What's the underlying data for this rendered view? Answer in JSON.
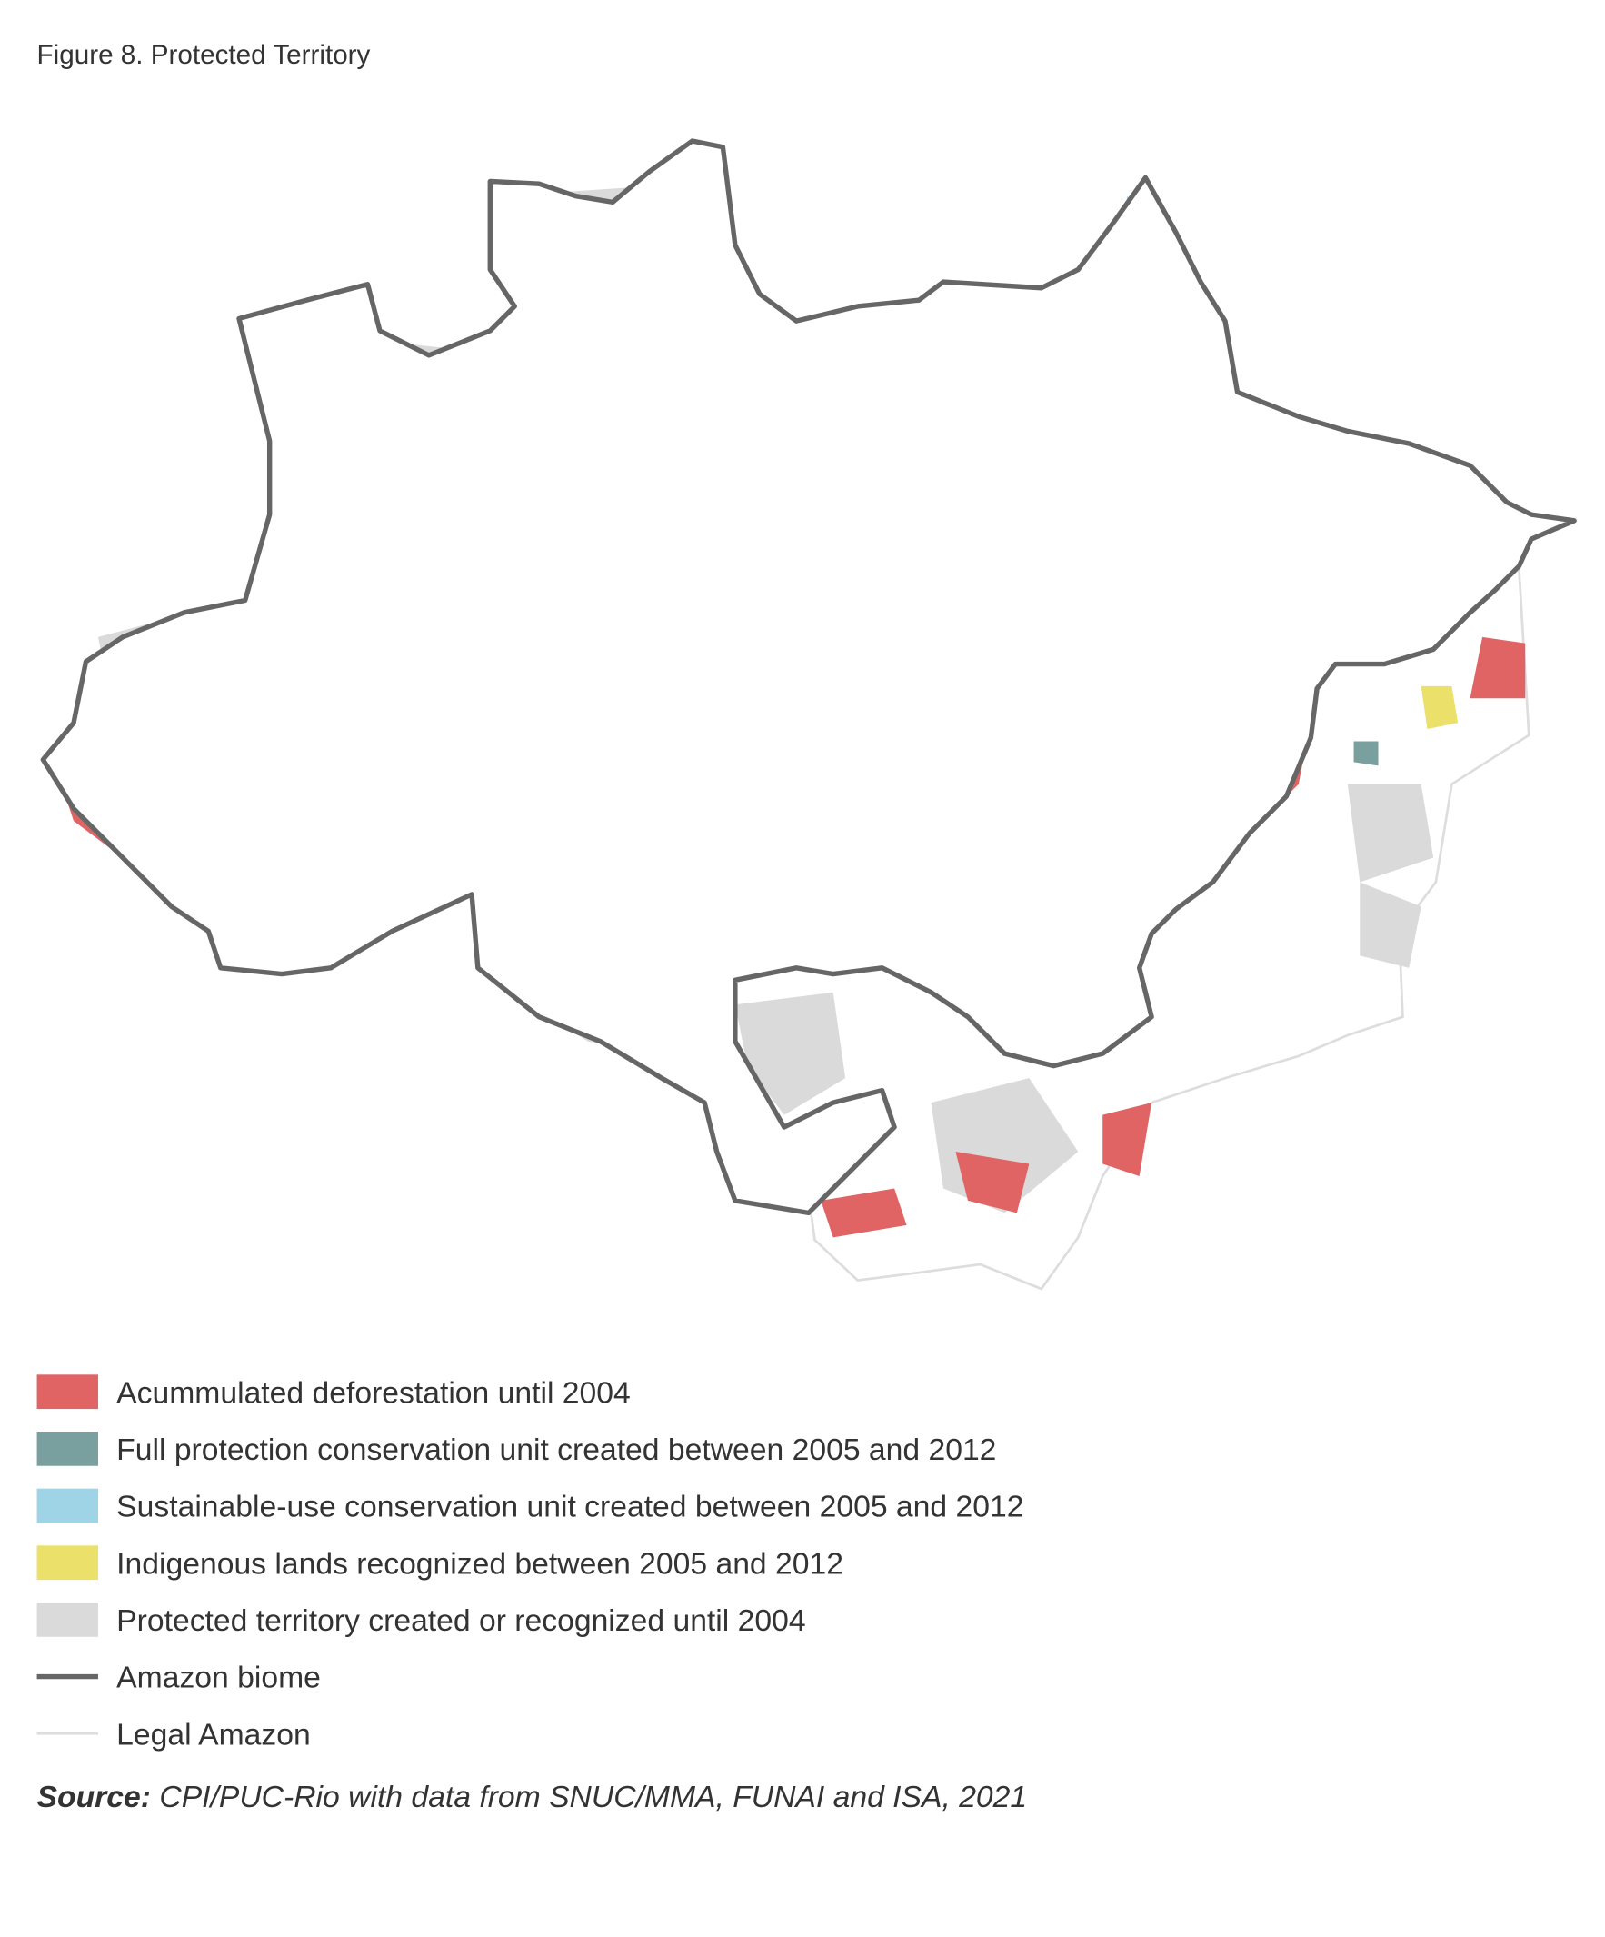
{
  "title": "Figure 8. Protected Territory",
  "legend": [
    {
      "label": "Acummulated deforestation until 2004",
      "color": "#e06464",
      "symbol": "area"
    },
    {
      "label": "Full protection conservation unit created between 2005 and 2012",
      "color": "#79a09f",
      "symbol": "area"
    },
    {
      "label": "Sustainable-use conservation unit created between 2005 and 2012",
      "color": "#9fd3e6",
      "symbol": "area"
    },
    {
      "label": "Indigenous lands recognized between 2005 and 2012",
      "color": "#ebe06a",
      "symbol": "area"
    },
    {
      "label": "Protected territory created or recognized until 2004",
      "color": "#dadada",
      "symbol": "area"
    },
    {
      "label": "Amazon biome",
      "color": "#666666",
      "symbol": "line"
    },
    {
      "label": "Legal Amazon",
      "color": "#dddddd",
      "symbol": "line"
    }
  ],
  "source": {
    "label": "Source:",
    "text": "CPI/PUC-Rio with data from SNUC/MMA, FUNAI and ISA, 2021"
  }
}
